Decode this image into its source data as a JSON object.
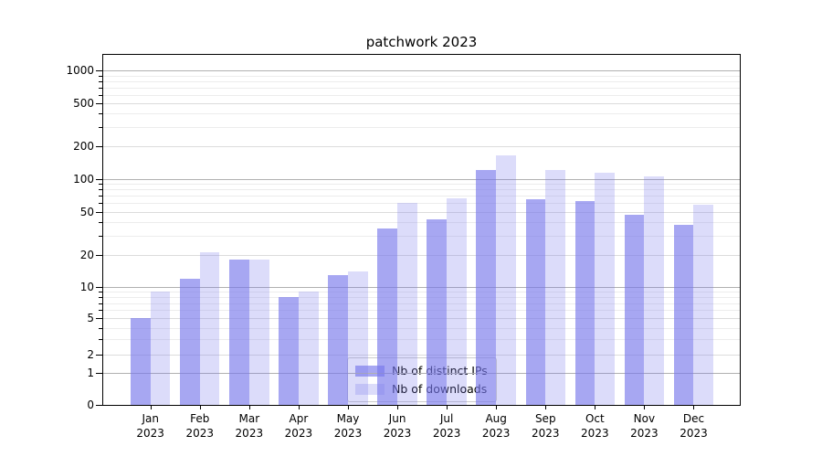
{
  "figure": {
    "title": "patchwork 2023",
    "background": "#ffffff"
  },
  "colors": {
    "bar_distinct_ips_solid": "#a7a7f1",
    "bar_downloads_solid": "#dcdcf9",
    "bar_distinct_ips": "rgba(120,120,235,0.65)",
    "bar_downloads": "rgba(120,120,235,0.26)",
    "grid_major": "#b0b0b0",
    "grid_mid": "#dcdcdc",
    "grid_minor": "#ececec",
    "axis": "#000000",
    "legend_border": "#cccccc"
  },
  "legend": {
    "items": [
      {
        "label": "Nb of distinct IPs"
      },
      {
        "label": "Nb of downloads"
      }
    ]
  },
  "chart_data": {
    "type": "bar",
    "title": "patchwork 2023",
    "categories": [
      "Jan 2023",
      "Feb 2023",
      "Mar 2023",
      "Apr 2023",
      "May 2023",
      "Jun 2023",
      "Jul 2023",
      "Aug 2023",
      "Sep 2023",
      "Oct 2023",
      "Nov 2023",
      "Dec 2023"
    ],
    "series": [
      {
        "name": "Nb of distinct IPs",
        "values": [
          5,
          12,
          18,
          8,
          13,
          35,
          42,
          120,
          65,
          62,
          47,
          38
        ]
      },
      {
        "name": "Nb of downloads",
        "values": [
          9,
          21,
          18,
          9,
          14,
          60,
          66,
          165,
          120,
          114,
          105,
          58
        ]
      }
    ],
    "xlabel": "",
    "ylabel": "",
    "yscale": "asinh (log-like above 10, compressed toward 0)",
    "yticks": [
      0,
      1,
      2,
      5,
      10,
      20,
      50,
      100,
      200,
      500,
      1000
    ],
    "ylim": [
      0,
      1400
    ],
    "grid": "horizontal major + minor",
    "legend_position": "lower center inside plot"
  }
}
